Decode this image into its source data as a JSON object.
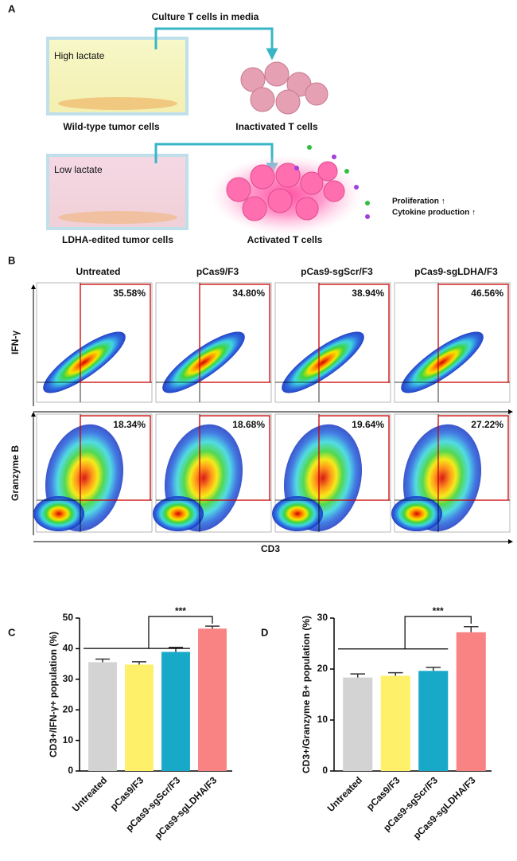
{
  "panel_a": {
    "label": "A",
    "arrow_label": "Culture T cells in media",
    "top_dish": "High lactate",
    "top_left_caption": "Wild-type tumor cells",
    "top_right_caption": "Inactivated T cells",
    "bottom_dish": "Low lactate",
    "bottom_left_caption": "LDHA-edited tumor cells",
    "bottom_right_caption": "Activated T cells",
    "effects": [
      "Proliferation ↑",
      "Cytokine production ↑"
    ]
  },
  "panel_b": {
    "label": "B",
    "columns": [
      "Untreated",
      "pCas9/F3",
      "pCas9-sgScr/F3",
      "pCas9-sgLDHA/F3"
    ],
    "rows": [
      {
        "label": "IFN-γ",
        "percentages": [
          "35.58%",
          "34.80%",
          "38.94%",
          "46.56%"
        ]
      },
      {
        "label": "Granzyme B",
        "percentages": [
          "18.34%",
          "18.68%",
          "19.64%",
          "27.22%"
        ]
      }
    ],
    "x_label": "CD3"
  },
  "chart_data": [
    {
      "type": "bar",
      "panel_label": "C",
      "ylabel": "CD3+/IFN-γ+ population (%)",
      "categories": [
        "Untreated",
        "pCas9/F3",
        "pCas9-sgScr/F3",
        "pCas9-sgLDHA/F3"
      ],
      "values": [
        35.58,
        34.8,
        38.94,
        46.56
      ],
      "errors": [
        1.0,
        0.9,
        1.5,
        0.8
      ],
      "colors": [
        "#d3d3d3",
        "#fff06a",
        "#19a9c8",
        "#f98383"
      ],
      "ylim": [
        0,
        50
      ],
      "yticks": [
        0,
        10,
        20,
        30,
        40,
        50
      ],
      "significance": "***"
    },
    {
      "type": "bar",
      "panel_label": "D",
      "ylabel": "CD3+/Granzyme B+ population (%)",
      "categories": [
        "Untreated",
        "pCas9/F3",
        "pCas9-sgScr/F3",
        "pCas9-sgLDHA/F3"
      ],
      "values": [
        18.34,
        18.68,
        19.64,
        27.22
      ],
      "errors": [
        0.7,
        0.6,
        0.7,
        1.1
      ],
      "colors": [
        "#d3d3d3",
        "#fff06a",
        "#19a9c8",
        "#f98383"
      ],
      "ylim": [
        0,
        30
      ],
      "yticks": [
        0,
        10,
        20,
        30
      ],
      "significance": "***"
    }
  ]
}
